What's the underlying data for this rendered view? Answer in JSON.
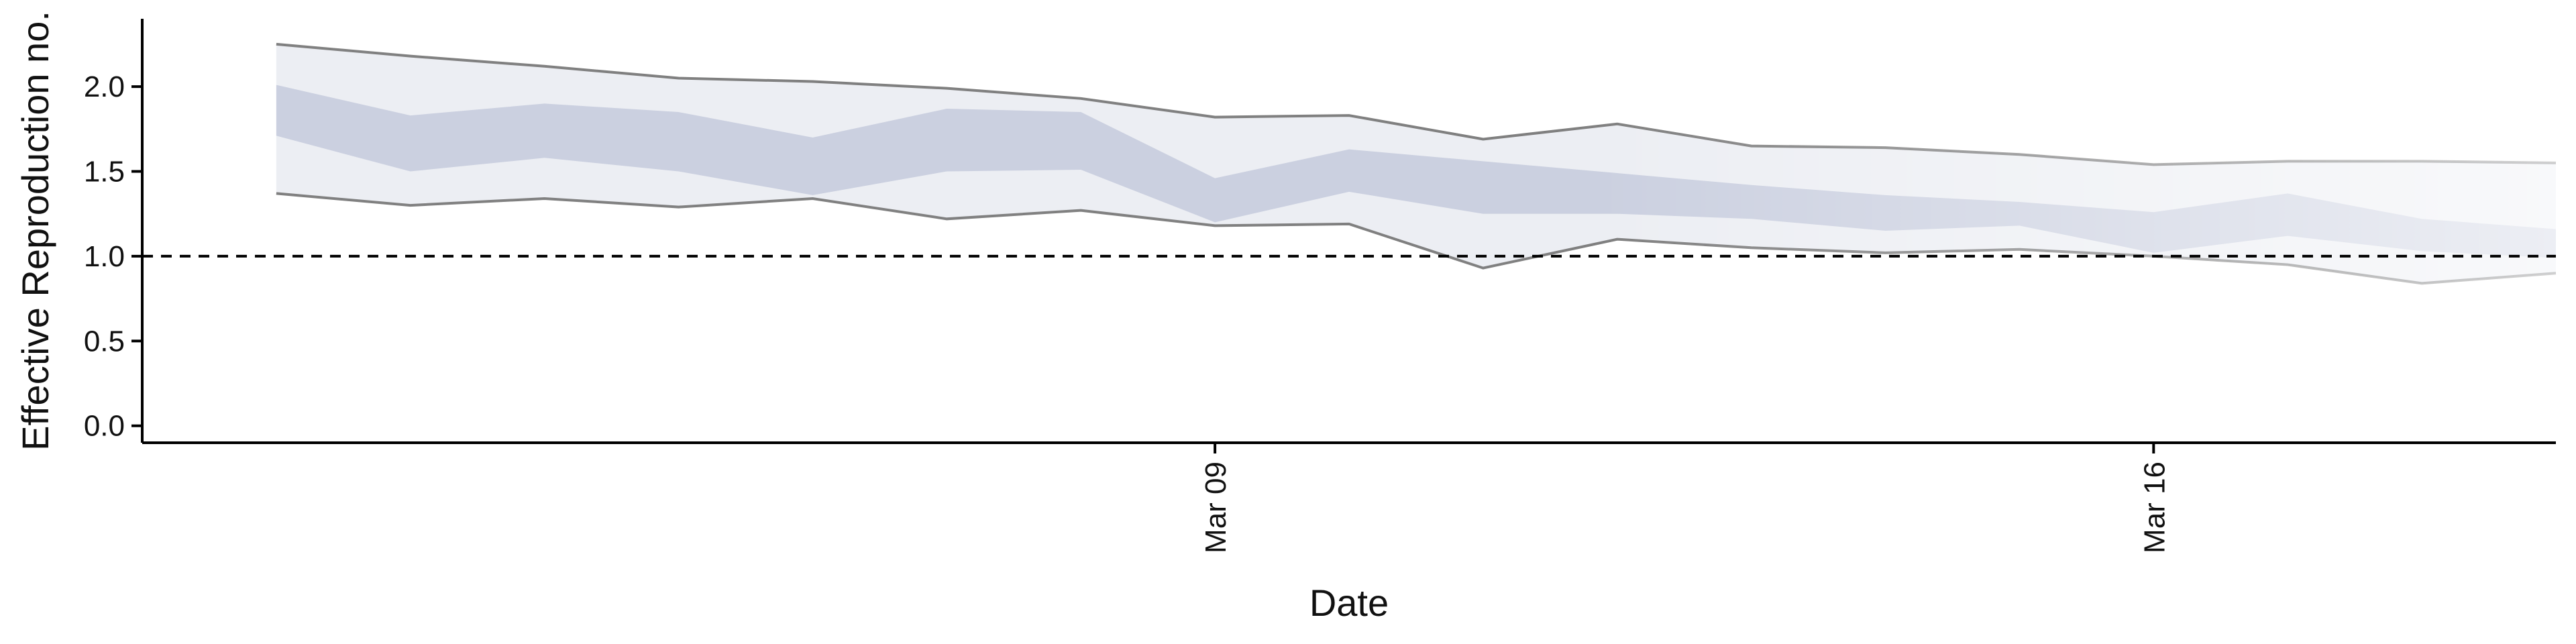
{
  "chart_data": {
    "type": "area",
    "xlabel": "Date",
    "ylabel": "Effective Reproduction no.",
    "ylim": [
      -0.1,
      2.4
    ],
    "yticks": [
      0.0,
      0.5,
      1.0,
      1.5,
      2.0
    ],
    "ytick_labels": [
      "0.0",
      "0.5",
      "1.0",
      "1.5",
      "2.0"
    ],
    "xlim": [
      "2020-03-01",
      "2020-03-19"
    ],
    "xticks": [
      "2020-03-09",
      "2020-03-16"
    ],
    "xtick_labels": [
      "Mar 09",
      "Mar 16"
    ],
    "reference_line": {
      "y": 1.0,
      "style": "dashed"
    },
    "grid": false,
    "legend": "none",
    "colors": {
      "outer_band": "#eceef3",
      "inner_band": "#cbd0e0",
      "bound_line": "#808080",
      "reference": "#000000"
    },
    "x": [
      "2020-03-02",
      "2020-03-03",
      "2020-03-04",
      "2020-03-05",
      "2020-03-06",
      "2020-03-07",
      "2020-03-08",
      "2020-03-09",
      "2020-03-10",
      "2020-03-11",
      "2020-03-12",
      "2020-03-13",
      "2020-03-14",
      "2020-03-15",
      "2020-03-16",
      "2020-03-17",
      "2020-03-18",
      "2020-03-19"
    ],
    "series": [
      {
        "band": "outer",
        "lower": [
          1.37,
          1.3,
          1.34,
          1.29,
          1.34,
          1.22,
          1.27,
          1.18,
          1.19,
          0.93,
          1.1,
          1.05,
          1.02,
          1.04,
          1.0,
          0.95,
          0.84,
          0.9
        ],
        "upper": [
          2.25,
          2.18,
          2.12,
          2.05,
          2.03,
          1.99,
          1.93,
          1.82,
          1.83,
          1.69,
          1.78,
          1.65,
          1.64,
          1.6,
          1.54,
          1.56,
          1.56,
          1.55
        ]
      },
      {
        "band": "inner",
        "lower": [
          1.71,
          1.5,
          1.58,
          1.5,
          1.36,
          1.5,
          1.51,
          1.2,
          1.38,
          1.25,
          1.25,
          1.22,
          1.15,
          1.18,
          1.02,
          1.12,
          1.03,
          0.99
        ],
        "upper": [
          2.01,
          1.83,
          1.9,
          1.85,
          1.7,
          1.87,
          1.85,
          1.46,
          1.63,
          1.56,
          1.49,
          1.42,
          1.36,
          1.32,
          1.26,
          1.37,
          1.22,
          1.16
        ]
      }
    ]
  }
}
